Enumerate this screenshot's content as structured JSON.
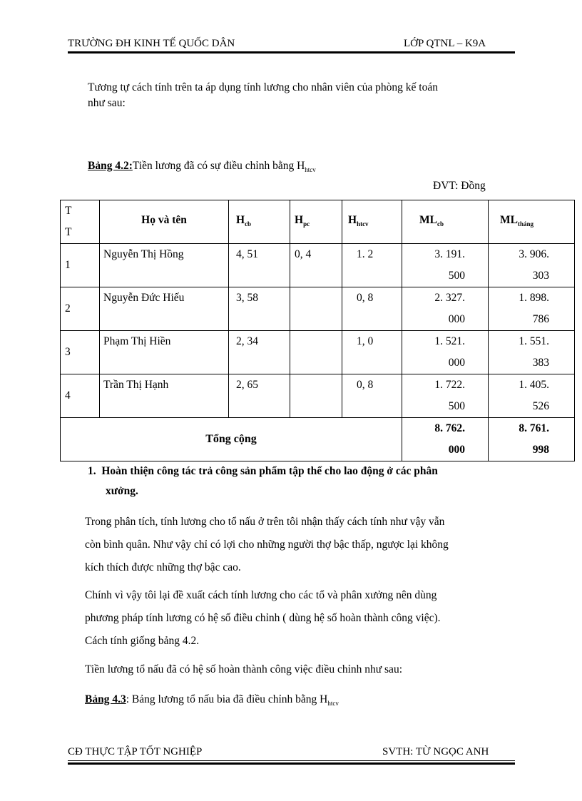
{
  "header": {
    "left": "TRƯỜNG ĐH KINH TẾ QUỐC DÂN",
    "right": "LỚP QTNL – K9A"
  },
  "intro": [
    "Tương tự cách tính trên ta áp dụng tính lương cho nhân viên của phòng kế toán",
    "như sau:"
  ],
  "table42": {
    "caption_label": "Bảng 4.2:",
    "caption_text": "Tiền lương đã có sự điều chỉnh bằng H",
    "caption_sub": "htcv",
    "unit": "ĐVT:  Đồng",
    "headers": {
      "tt1": "T",
      "tt2": "T",
      "name": "Họ và tên",
      "hcb": "H",
      "hcb_sub": "cb",
      "hpc": "H",
      "hpc_sub": "pc",
      "htcv": "H",
      "htcv_sub": "htcv",
      "mlcb": "ML",
      "mlcb_sub": "cb",
      "mlthang": "ML",
      "mlthang_sub": "tháng"
    },
    "rows": [
      {
        "tt": "1",
        "name": "Nguyễn Thị Hồng",
        "hcb": "4, 51",
        "hpc": "0, 4",
        "htcv": "1. 2",
        "mlcb": [
          "3. 191.",
          "500"
        ],
        "mlthang": [
          "3. 906.",
          "303"
        ]
      },
      {
        "tt": "2",
        "name": "Nguyễn Đức Hiếu",
        "hcb": "3, 58",
        "hpc": "",
        "htcv": "0, 8",
        "mlcb": [
          "2. 327.",
          "000"
        ],
        "mlthang": [
          "1. 898.",
          "786"
        ]
      },
      {
        "tt": "3",
        "name": "Phạm Thị Hiền",
        "hcb": "2, 34",
        "hpc": "",
        "htcv": "1, 0",
        "mlcb": [
          "1. 521.",
          "000"
        ],
        "mlthang": [
          "1. 551.",
          "383"
        ]
      },
      {
        "tt": "4",
        "name": "Trần Thị Hạnh",
        "hcb": "2, 65",
        "hpc": "",
        "htcv": "0, 8",
        "mlcb": [
          "1. 722.",
          "500"
        ],
        "mlthang": [
          "1. 405.",
          "526"
        ]
      }
    ],
    "total": {
      "label": "Tổng cộng",
      "mlcb": [
        "8. 762.",
        "000"
      ],
      "mlthang": [
        "8. 761.",
        "998"
      ]
    }
  },
  "section": {
    "number": "1.",
    "title": [
      "Hoàn thiện công tác trả công sản phẩm tập thể cho lao động ở các phân",
      "xưởng."
    ]
  },
  "paragraphs": [
    [
      "Trong phân tích, tính lương cho tổ nấu ở trên tôi nhận thấy cách tính như vậy vẫn",
      "còn bình quân. Như vậy chỉ có lợi cho những người thợ bậc thấp, ngược lại không",
      "kích thích được những  thợ bậc cao."
    ],
    [
      "Chính vì vậy tôi lại đề xuất cách tính lương cho các tổ và phân xưởng nên dùng",
      "phương pháp tính lương có hệ số điều chỉnh ( dùng hệ số hoàn thành công việc).",
      "Cách tính giống bảng 4.2."
    ],
    [
      "Tiền lương tổ nấu đã có hệ số hoàn thành  công việc điều chỉnh như sau:"
    ]
  ],
  "table43": {
    "caption_label": "Bảng 4.3",
    "caption_text": ": Bảng lương tổ nấu bia đã điều chỉnh bằng H",
    "caption_sub": "htcv"
  },
  "footer": {
    "left": "CĐ THỰC TẬP TỐT NGHIỆP",
    "right": "SVTH: TỪ NGỌC ANH"
  }
}
